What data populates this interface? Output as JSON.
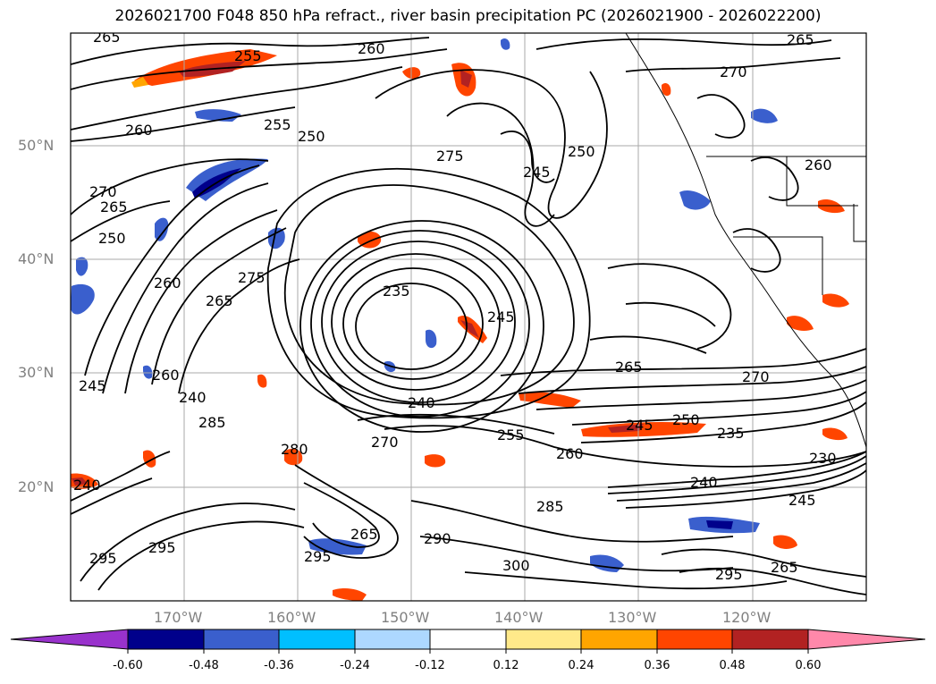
{
  "title": "2026021700 F048 850 hPa refract., river basin precipitation PC (2026021900 - 2026022200)",
  "map": {
    "lat_labels": [
      "50°N",
      "40°N",
      "30°N",
      "20°N"
    ],
    "lon_labels": [
      "170°W",
      "160°W",
      "150°W",
      "140°W",
      "130°W",
      "120°W"
    ],
    "contour_labels": [
      "265",
      "255",
      "260",
      "260",
      "255",
      "250",
      "270",
      "265",
      "250",
      "260",
      "275",
      "265",
      "245",
      "260",
      "240",
      "235",
      "245",
      "275",
      "250",
      "245",
      "265",
      "270",
      "270",
      "265",
      "240",
      "285",
      "280",
      "270",
      "255",
      "260",
      "245",
      "250",
      "235",
      "230",
      "240",
      "285",
      "295",
      "265",
      "295",
      "290",
      "300",
      "245",
      "265",
      "260",
      "295",
      "240",
      "295"
    ],
    "label_color": "#808080",
    "line_color": "#000000",
    "grid_color": "#aaaaaa"
  },
  "colorbar": {
    "tick_labels": [
      "-0.60",
      "-0.48",
      "-0.36",
      "-0.24",
      "-0.12",
      "0.12",
      "0.24",
      "0.36",
      "0.48",
      "0.60"
    ],
    "colors": [
      "#9932cc",
      "#00008b",
      "#3a5fcd",
      "#00bfff",
      "#add8ff",
      "#ffffff",
      "#ffe98a",
      "#ffa500",
      "#ff4500",
      "#b22222",
      "#ff88aa"
    ]
  }
}
